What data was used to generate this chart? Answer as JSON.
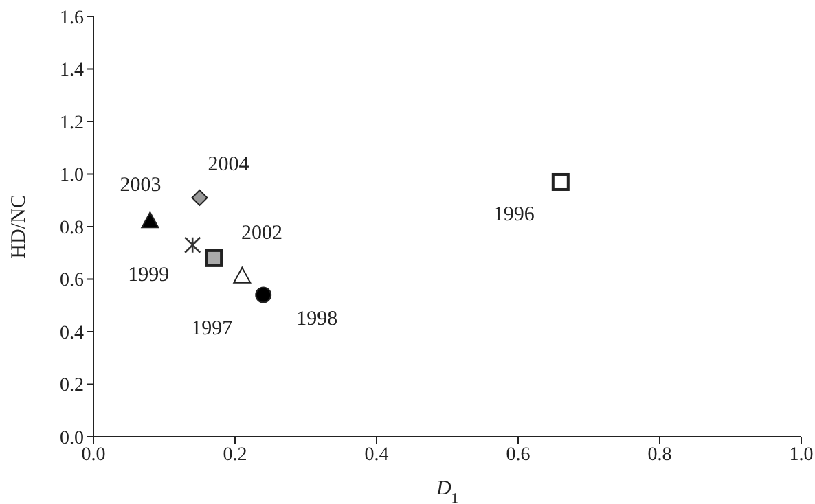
{
  "chart_data": {
    "type": "scatter",
    "xlabel": "D$_{1}$",
    "ylabel": "HD/NC",
    "xlim": [
      0,
      1
    ],
    "ylim": [
      0,
      1.6
    ],
    "xticks": [
      {
        "value": 0,
        "label": "0.0"
      },
      {
        "value": 0.2,
        "label": "0.2"
      },
      {
        "value": 0.4,
        "label": "0.4"
      },
      {
        "value": 0.6,
        "label": "0.6"
      },
      {
        "value": 0.8,
        "label": "0.8"
      },
      {
        "value": 1,
        "label": "1.0"
      }
    ],
    "yticks": [
      {
        "value": 0,
        "label": "0.0"
      },
      {
        "value": 0.2,
        "label": "0.2"
      },
      {
        "value": 0.4,
        "label": "0.4"
      },
      {
        "value": 0.6,
        "label": "0.6"
      },
      {
        "value": 0.8,
        "label": "0.8"
      },
      {
        "value": 1,
        "label": "1.0"
      },
      {
        "value": 1.2,
        "label": "1.2"
      },
      {
        "value": 1.4,
        "label": "1.4"
      },
      {
        "value": 1.6,
        "label": "1.6"
      }
    ],
    "grid": false,
    "legend": false,
    "series": [
      {
        "name": "2003",
        "color": "#000000",
        "marker": "triangle",
        "x": [
          0.08
        ],
        "values": [
          0.82
        ]
      },
      {
        "name": "2004",
        "color": "#999999",
        "marker": "diamond",
        "x": [
          0.15
        ],
        "values": [
          0.91
        ]
      },
      {
        "name": "1999",
        "color": "#333333",
        "marker": "cross",
        "x": [
          0.14
        ],
        "values": [
          0.73
        ]
      },
      {
        "name": "2002",
        "color": "#aaaaaa",
        "marker": "square",
        "x": [
          0.17
        ],
        "values": [
          0.68
        ]
      },
      {
        "name": "1997",
        "color": "#ffffff",
        "marker": "triangle",
        "x": [
          0.21
        ],
        "values": [
          0.61
        ]
      },
      {
        "name": "1998",
        "color": "#000000",
        "marker": "circle",
        "x": [
          0.24
        ],
        "values": [
          0.54
        ]
      },
      {
        "name": "1996",
        "color": "#ffffff",
        "marker": "square",
        "x": [
          0.66
        ],
        "values": [
          0.97
        ]
      }
    ]
  }
}
